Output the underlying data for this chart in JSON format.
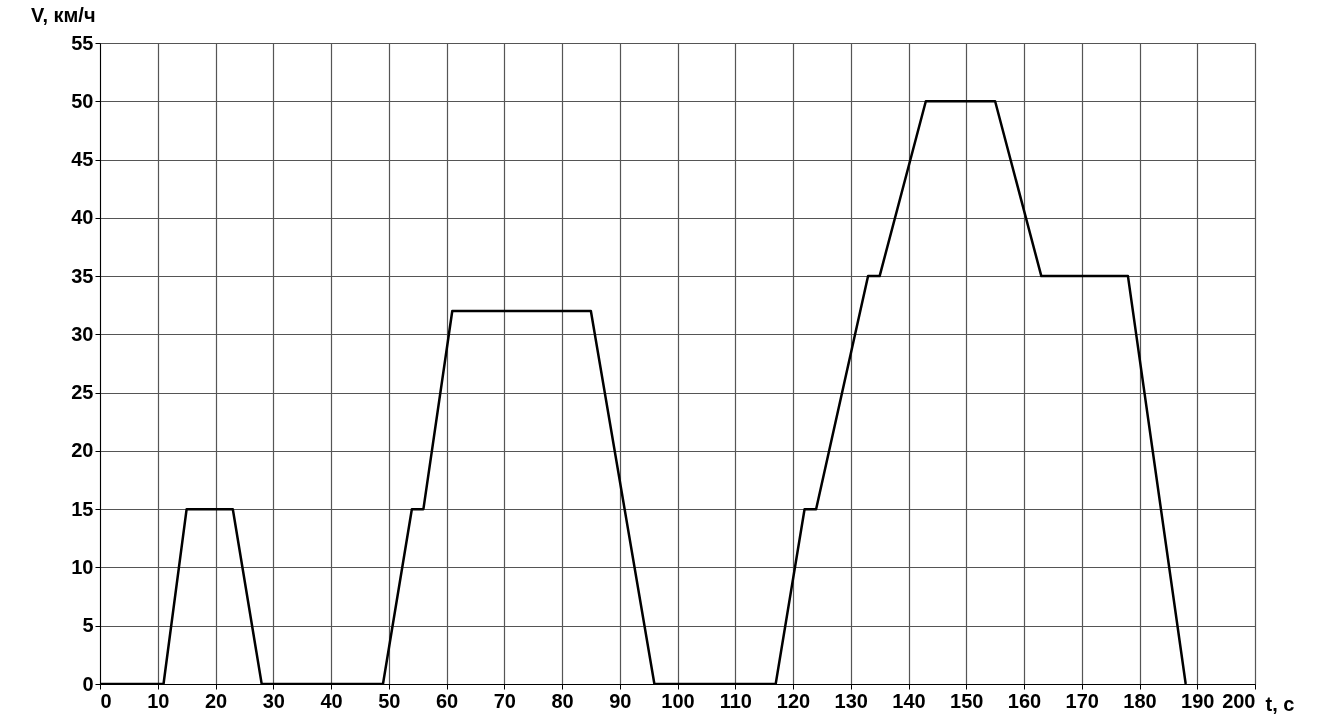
{
  "chart_data": {
    "type": "line",
    "xlabel": "t, с",
    "ylabel": "V, км/ч",
    "x": [
      0,
      11,
      15,
      23,
      28,
      49,
      54,
      56,
      61,
      85,
      96,
      117,
      122,
      124,
      133,
      135,
      143,
      155,
      163,
      178,
      188
    ],
    "series": [
      {
        "color": "#000000",
        "values": [
          0,
          0,
          15,
          15,
          0,
          0,
          15,
          15,
          32,
          32,
          0,
          0,
          15,
          15,
          35,
          35,
          50,
          50,
          35,
          35,
          0
        ]
      }
    ],
    "xlim": [
      0,
      200
    ],
    "xticks": [
      0,
      10,
      20,
      30,
      40,
      50,
      60,
      70,
      80,
      90,
      100,
      110,
      120,
      130,
      140,
      150,
      160,
      170,
      180,
      190,
      200
    ],
    "ylim": [
      0,
      55
    ],
    "yticks": [
      0,
      5,
      10,
      15,
      20,
      25,
      30,
      35,
      40,
      45,
      50,
      55
    ],
    "grid": true,
    "marker": "none",
    "line_style": "solid"
  }
}
